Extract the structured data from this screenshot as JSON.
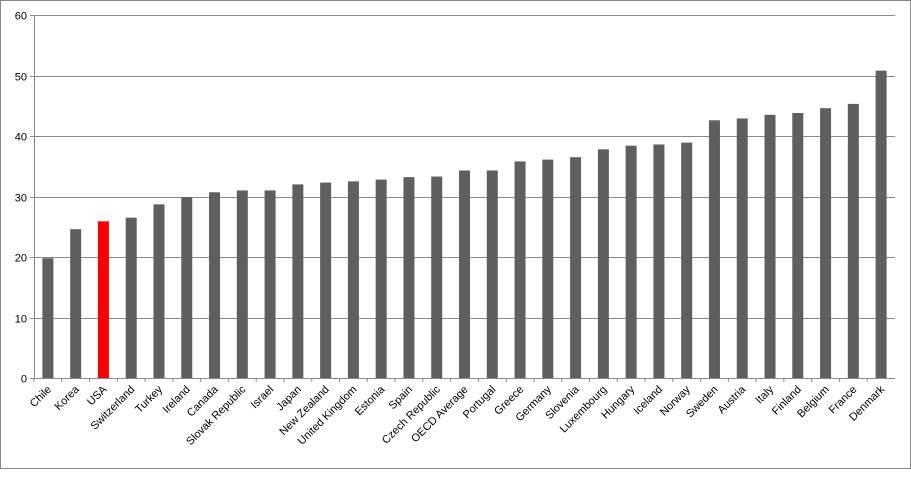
{
  "chart_data": {
    "type": "bar",
    "title": "",
    "xlabel": "",
    "ylabel": "",
    "ylim": [
      0,
      60
    ],
    "yticks": [
      0,
      10,
      20,
      30,
      40,
      50,
      60
    ],
    "grid": true,
    "legend": "none",
    "default_color": "#5f5f5f",
    "highlight_color": "#ff0000",
    "highlight_category": "USA",
    "categories": [
      "Chile",
      "Korea",
      "USA",
      "Switzerland",
      "Turkey",
      "Ireland",
      "Canada",
      "Slovak Republic",
      "Israel",
      "Japan",
      "New Zealand",
      "United Kingdom",
      "Estonia",
      "Spain",
      "Czech Republic",
      "OECD Average",
      "Portugal",
      "Greece",
      "Germany",
      "Slovenia",
      "Luxembourg",
      "Hungary",
      "Iceland",
      "Norway",
      "Sweden",
      "Austria",
      "Italy",
      "Finland",
      "Belgium",
      "France",
      "Denmark"
    ],
    "values": [
      19.8,
      24.6,
      25.9,
      26.5,
      28.7,
      29.9,
      30.7,
      31.0,
      31.0,
      32.0,
      32.3,
      32.5,
      32.8,
      33.2,
      33.3,
      34.3,
      34.3,
      35.8,
      36.1,
      36.5,
      37.8,
      38.4,
      38.6,
      38.9,
      42.6,
      42.9,
      43.5,
      43.8,
      44.6,
      45.3,
      50.8
    ]
  }
}
